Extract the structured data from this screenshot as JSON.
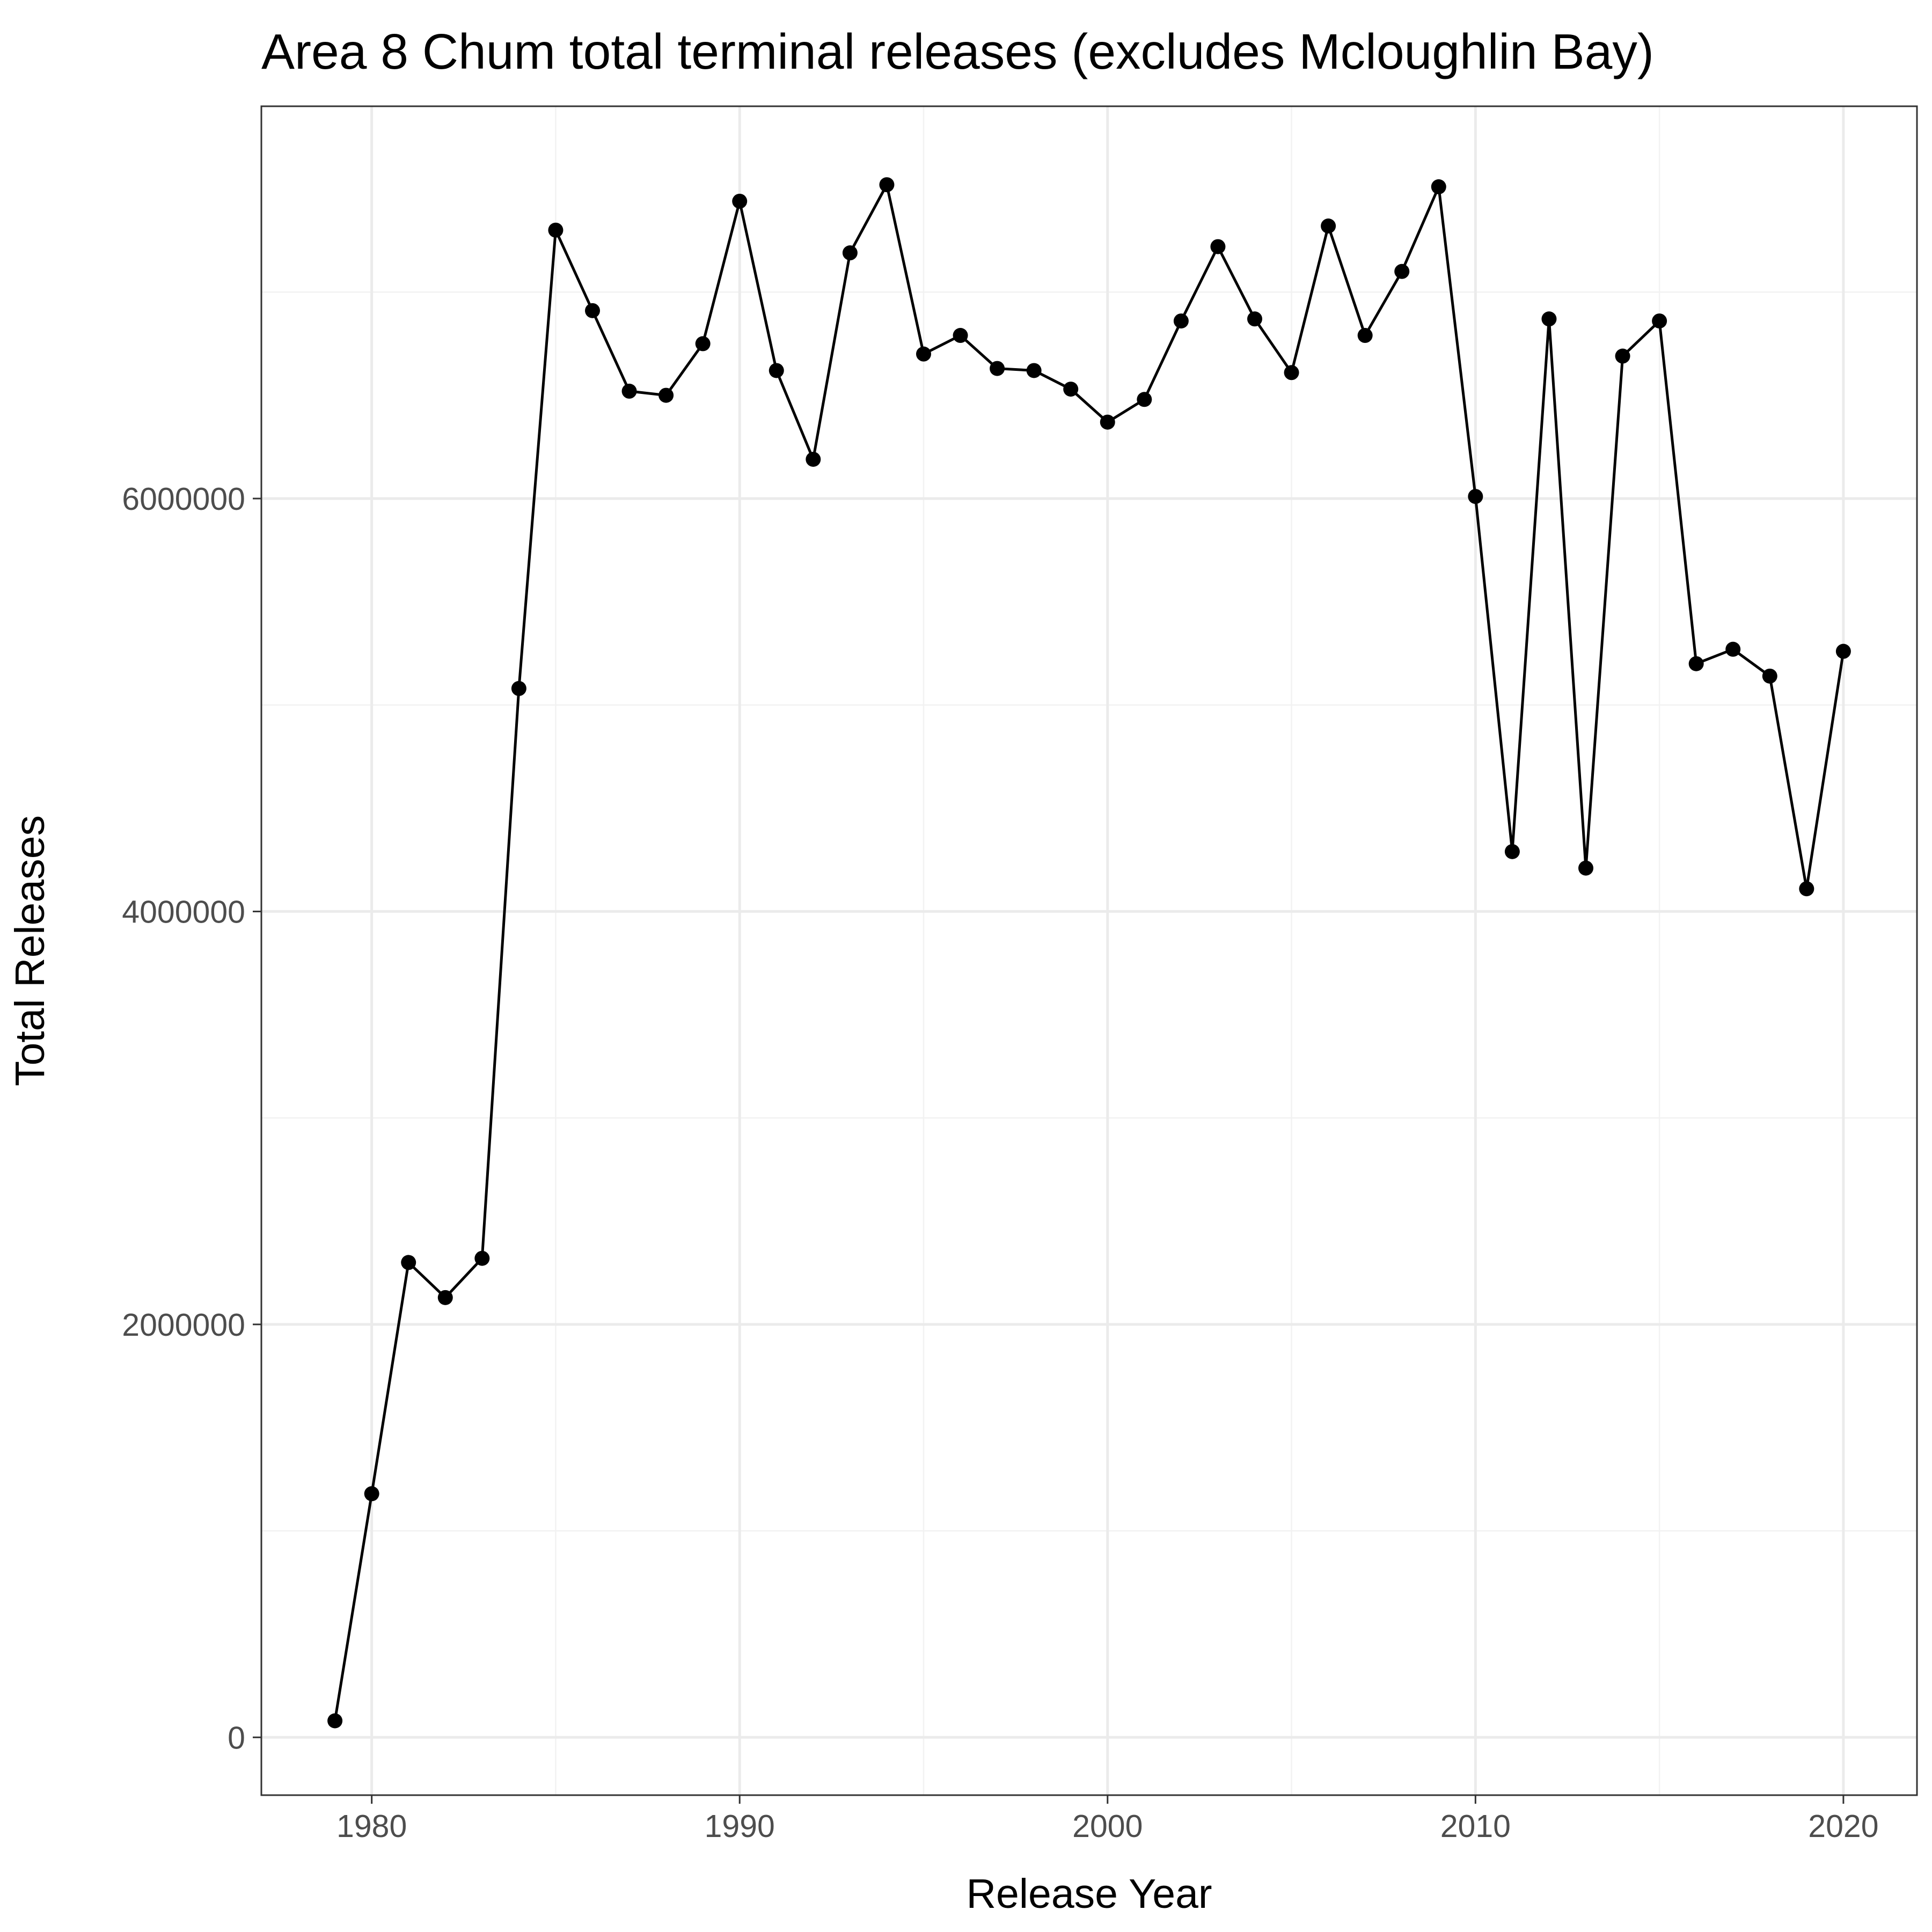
{
  "chart_data": {
    "type": "line",
    "title": "Area 8 Chum total terminal releases (excludes Mcloughlin Bay)",
    "xlabel": "Release Year",
    "ylabel": "Total Releases",
    "xlim": [
      1977,
      2022
    ],
    "ylim": [
      -280000,
      7900000
    ],
    "x_ticks": [
      1980,
      1990,
      2000,
      2010,
      2020
    ],
    "y_ticks": [
      0,
      2000000,
      4000000,
      6000000
    ],
    "y_tick_labels": [
      "0",
      "2000000",
      "4000000",
      "6000000"
    ],
    "grid": true,
    "legend": "none",
    "series": [
      {
        "x": [
          1979,
          1980,
          1981,
          1982,
          1983,
          1984,
          1985,
          1986,
          1987,
          1988,
          1989,
          1990,
          1991,
          1992,
          1993,
          1994,
          1995,
          1996,
          1997,
          1998,
          1999,
          2000,
          2001,
          2002,
          2003,
          2004,
          2005,
          2006,
          2007,
          2008,
          2009,
          2010,
          2011,
          2012,
          2013,
          2014,
          2015,
          2016,
          2017,
          2018,
          2019,
          2020
        ],
        "values": [
          80000,
          1180000,
          2300000,
          2130000,
          2320000,
          5080000,
          7300000,
          6910000,
          6520000,
          6500000,
          6750000,
          7440000,
          6620000,
          6190000,
          7190000,
          7520000,
          6700000,
          6790000,
          6630000,
          6620000,
          6530000,
          6370000,
          6480000,
          6860000,
          7220000,
          6870000,
          6610000,
          7320000,
          6790000,
          7100000,
          7510000,
          6010000,
          4290000,
          6870000,
          4210000,
          6690000,
          6860000,
          5200000,
          5270000,
          5140000,
          4110000,
          5260000
        ],
        "color": "#000000"
      }
    ]
  }
}
